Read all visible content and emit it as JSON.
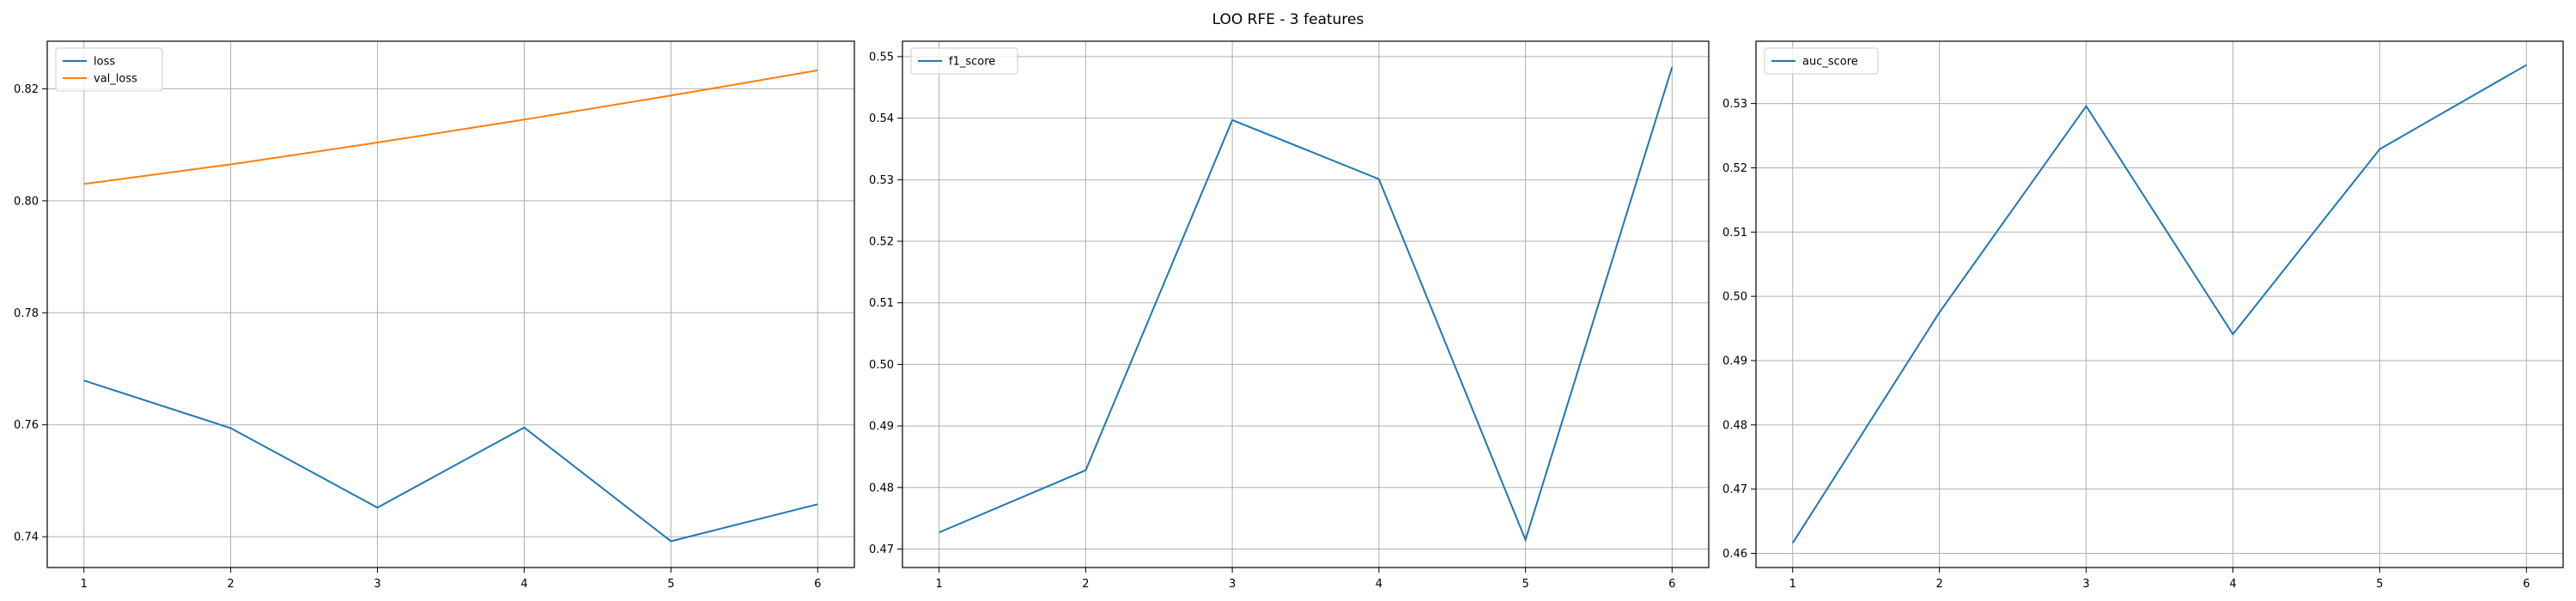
{
  "figure": {
    "title": "LOO RFE - 3 features"
  },
  "chart_data": [
    {
      "type": "line",
      "x": [
        1,
        2,
        3,
        4,
        5,
        6
      ],
      "xlim": [
        0.75,
        6.25
      ],
      "ylim": [
        0.7345,
        0.8285
      ],
      "xticks": [
        1,
        2,
        3,
        4,
        5,
        6
      ],
      "yticks": [
        0.74,
        0.76,
        0.78,
        0.8,
        0.82
      ],
      "ytick_format": 2,
      "grid": true,
      "legend_position": "upper left",
      "series": [
        {
          "name": "loss",
          "color": "#1f77b4",
          "values": [
            0.7679,
            0.7594,
            0.7452,
            0.7595,
            0.7392,
            0.7458
          ]
        },
        {
          "name": "val_loss",
          "color": "#ff7f0e",
          "values": [
            0.803,
            0.8065,
            0.8104,
            0.8145,
            0.8188,
            0.8233
          ]
        }
      ]
    },
    {
      "type": "line",
      "x": [
        1,
        2,
        3,
        4,
        5,
        6
      ],
      "xlim": [
        0.75,
        6.25
      ],
      "ylim": [
        0.467,
        0.5525
      ],
      "xticks": [
        1,
        2,
        3,
        4,
        5,
        6
      ],
      "yticks": [
        0.47,
        0.48,
        0.49,
        0.5,
        0.51,
        0.52,
        0.53,
        0.54,
        0.55
      ],
      "ytick_format": 2,
      "grid": true,
      "legend_position": "upper left",
      "series": [
        {
          "name": "f1_score",
          "color": "#1f77b4",
          "values": [
            0.4727,
            0.4828,
            0.5397,
            0.5301,
            0.4715,
            0.5483
          ]
        }
      ]
    },
    {
      "type": "line",
      "x": [
        1,
        2,
        3,
        4,
        5,
        6
      ],
      "xlim": [
        0.75,
        6.25
      ],
      "ylim": [
        0.4578,
        0.5397
      ],
      "xticks": [
        1,
        2,
        3,
        4,
        5,
        6
      ],
      "yticks": [
        0.46,
        0.47,
        0.48,
        0.49,
        0.5,
        0.51,
        0.52,
        0.53
      ],
      "ytick_format": 2,
      "grid": true,
      "legend_position": "upper left",
      "series": [
        {
          "name": "auc_score",
          "color": "#1f77b4",
          "values": [
            0.4616,
            0.4975,
            0.5296,
            0.4941,
            0.5229,
            0.536
          ]
        }
      ]
    }
  ]
}
